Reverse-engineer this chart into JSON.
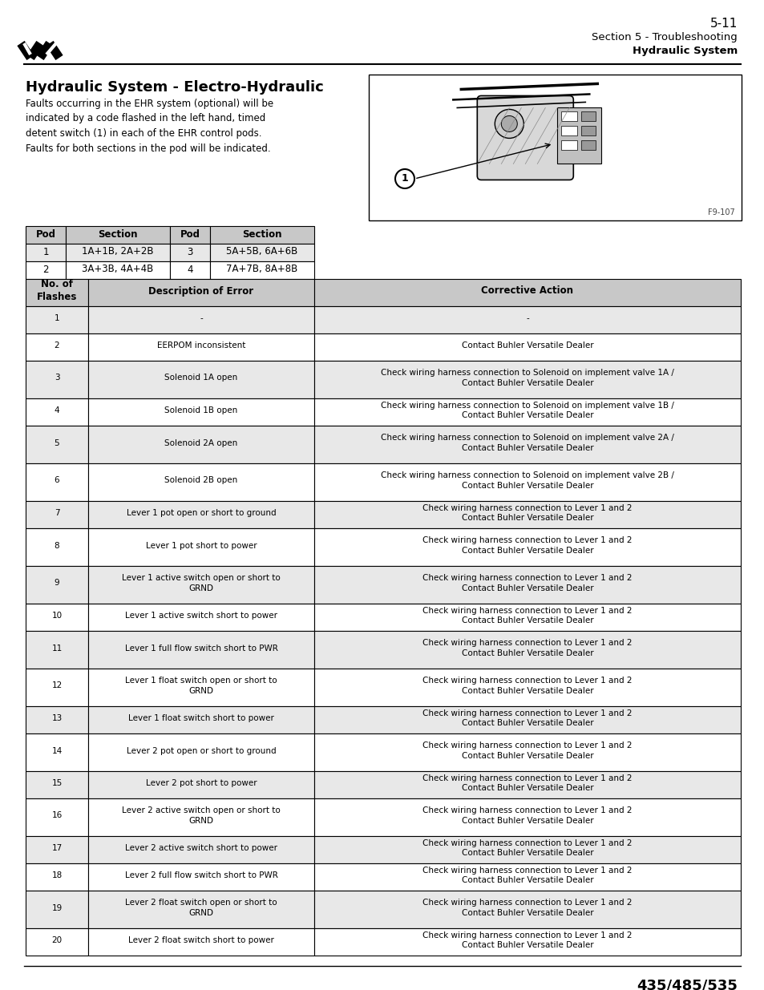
{
  "page_number": "5-11",
  "section_header": "Section 5 - Troubleshooting",
  "section_subheader": "Hydraulic System",
  "title": "Hydraulic System - Electro-Hydraulic",
  "body_text": "Faults occurring in the EHR system (optional) will be\nindicated by a code flashed in the left hand, timed\ndetent switch (1) in each of the EHR control pods.\nFaults for both sections in the pod will be indicated.",
  "pod_table_headers": [
    "Pod",
    "Section",
    "Pod",
    "Section"
  ],
  "pod_table_data": [
    [
      "1",
      "1A+1B, 2A+2B",
      "3",
      "5A+5B, 6A+6B"
    ],
    [
      "2",
      "3A+3B, 4A+4B",
      "4",
      "7A+7B, 8A+8B"
    ]
  ],
  "figure_label": "F9-107",
  "main_table_headers": [
    "No. of\nFlashes",
    "Description of Error",
    "Corrective Action"
  ],
  "main_table_data": [
    [
      "1",
      "-",
      "-"
    ],
    [
      "2",
      "EERPOM inconsistent",
      "Contact Buhler Versatile Dealer"
    ],
    [
      "3",
      "Solenoid 1A open",
      "Check wiring harness connection to Solenoid on implement valve 1A /\nContact Buhler Versatile Dealer"
    ],
    [
      "4",
      "Solenoid 1B open",
      "Check wiring harness connection to Solenoid on implement valve 1B /\nContact Buhler Versatile Dealer"
    ],
    [
      "5",
      "Solenoid 2A open",
      "Check wiring harness connection to Solenoid on implement valve 2A /\nContact Buhler Versatile Dealer"
    ],
    [
      "6",
      "Solenoid 2B open",
      "Check wiring harness connection to Solenoid on implement valve 2B /\nContact Buhler Versatile Dealer"
    ],
    [
      "7",
      "Lever 1 pot open or short to ground",
      "Check wiring harness connection to Lever 1 and 2\nContact Buhler Versatile Dealer"
    ],
    [
      "8",
      "Lever 1 pot short to power",
      "Check wiring harness connection to Lever 1 and 2\nContact Buhler Versatile Dealer"
    ],
    [
      "9",
      "Lever 1 active switch open or short to\nGRND",
      "Check wiring harness connection to Lever 1 and 2\nContact Buhler Versatile Dealer"
    ],
    [
      "10",
      "Lever 1 active switch short to power",
      "Check wiring harness connection to Lever 1 and 2\nContact Buhler Versatile Dealer"
    ],
    [
      "11",
      "Lever 1 full flow switch short to PWR",
      "Check wiring harness connection to Lever 1 and 2\nContact Buhler Versatile Dealer"
    ],
    [
      "12",
      "Lever 1 float switch open or short to\nGRND",
      "Check wiring harness connection to Lever 1 and 2\nContact Buhler Versatile Dealer"
    ],
    [
      "13",
      "Lever 1 float switch short to power",
      "Check wiring harness connection to Lever 1 and 2\nContact Buhler Versatile Dealer"
    ],
    [
      "14",
      "Lever 2 pot open or short to ground",
      "Check wiring harness connection to Lever 1 and 2\nContact Buhler Versatile Dealer"
    ],
    [
      "15",
      "Lever 2 pot short to power",
      "Check wiring harness connection to Lever 1 and 2\nContact Buhler Versatile Dealer"
    ],
    [
      "16",
      "Lever 2 active switch open or short to\nGRND",
      "Check wiring harness connection to Lever 1 and 2\nContact Buhler Versatile Dealer"
    ],
    [
      "17",
      "Lever 2 active switch short to power",
      "Check wiring harness connection to Lever 1 and 2\nContact Buhler Versatile Dealer"
    ],
    [
      "18",
      "Lever 2 full flow switch short to PWR",
      "Check wiring harness connection to Lever 1 and 2\nContact Buhler Versatile Dealer"
    ],
    [
      "19",
      "Lever 2 float switch open or short to\nGRND",
      "Check wiring harness connection to Lever 1 and 2\nContact Buhler Versatile Dealer"
    ],
    [
      "20",
      "Lever 2 float switch short to power",
      "Check wiring harness connection to Lever 1 and 2\nContact Buhler Versatile Dealer"
    ]
  ],
  "footer_text": "435/485/535",
  "bg_color": "#ffffff",
  "header_bg": "#c8c8c8",
  "row_even_bg": "#e8e8e8",
  "row_odd_bg": "#ffffff",
  "border_color": "#000000"
}
